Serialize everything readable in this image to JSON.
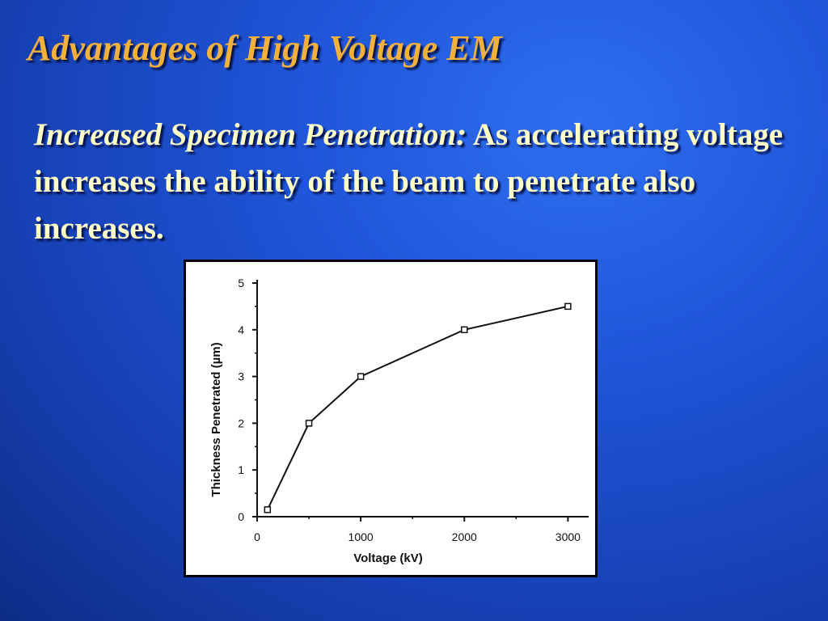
{
  "slide": {
    "title": "Advantages of High Voltage EM",
    "lead": "Increased Specimen Penetration:",
    "body": "As accelerating voltage increases the ability of the beam to penetrate also increases."
  },
  "colors": {
    "title": "#f4b13a",
    "body_text": "#ffffc8",
    "background": "#1f55d8"
  },
  "chart_data": {
    "type": "line",
    "title": "",
    "xlabel": "Voltage (kV)",
    "ylabel": "Thickness Penetrated (µm)",
    "xlim": [
      0,
      3200
    ],
    "ylim": [
      0,
      5
    ],
    "xticks": [
      0,
      1000,
      2000,
      3000
    ],
    "xtick_labels": [
      "0",
      "1000",
      "2000",
      "3000"
    ],
    "yticks": [
      0,
      1,
      2,
      3,
      4,
      5
    ],
    "ytick_labels": [
      "0",
      "1",
      "2",
      "3",
      "4",
      "5"
    ],
    "marker": "square",
    "grid": false,
    "x": [
      100,
      500,
      1000,
      2000,
      3000
    ],
    "y": [
      0.15,
      2.0,
      3.0,
      4.0,
      4.5
    ]
  }
}
